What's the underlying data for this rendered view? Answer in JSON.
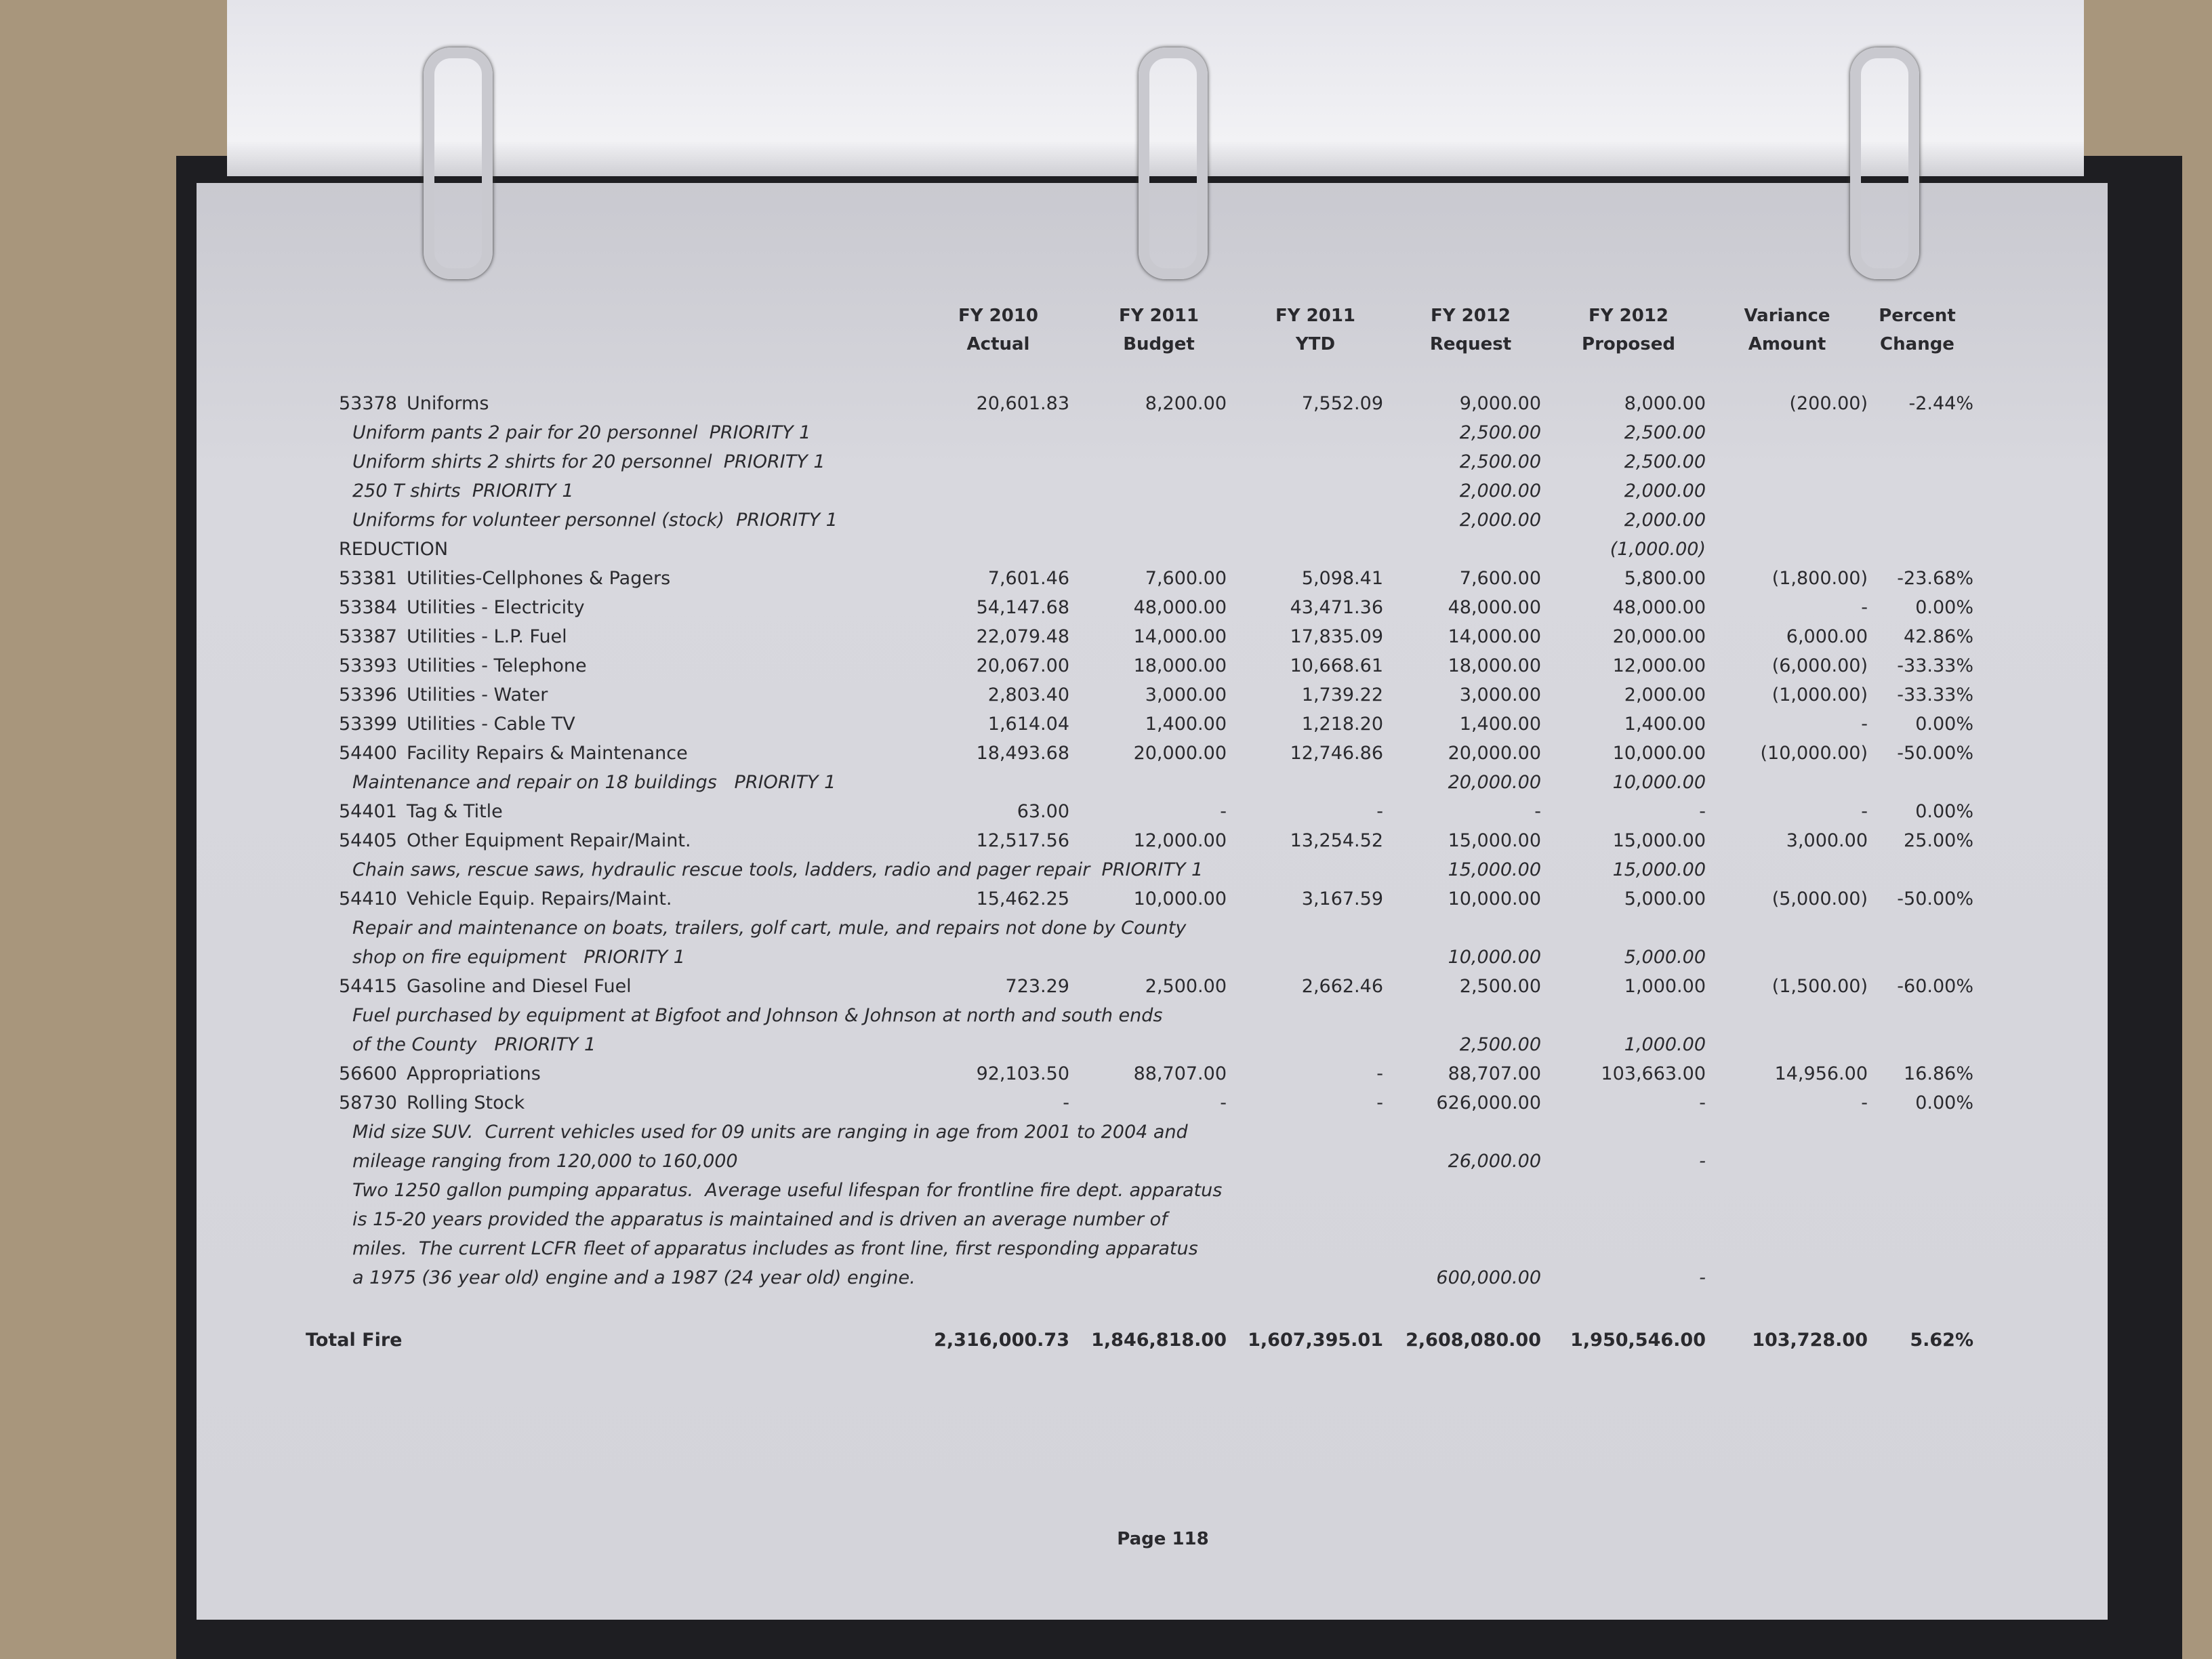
{
  "header": {
    "columns": [
      {
        "key": "actual2010",
        "line1": "FY 2010",
        "line2": "Actual"
      },
      {
        "key": "budget2011",
        "line1": "FY 2011",
        "line2": "Budget"
      },
      {
        "key": "ytd2011",
        "line1": "FY 2011",
        "line2": "YTD"
      },
      {
        "key": "request2012",
        "line1": "FY 2012",
        "line2": "Request"
      },
      {
        "key": "proposed2012",
        "line1": "FY 2012",
        "line2": "Proposed"
      },
      {
        "key": "variance",
        "line1": "Variance",
        "line2": "Amount"
      },
      {
        "key": "percent",
        "line1": "Percent",
        "line2": "Change"
      }
    ]
  },
  "rows": [
    {
      "account": "53378",
      "name": "Uniforms",
      "values": {
        "actual2010": "20,601.83",
        "budget2011": "8,200.00",
        "ytd2011": "7,552.09",
        "request2012": "9,000.00",
        "proposed2012": "8,000.00",
        "variance": "(200.00)",
        "percent": "-2.44%"
      }
    },
    {
      "note": "Uniform pants 2 pair for 20 personnel  PRIORITY 1",
      "values": {
        "request2012": "2,500.00",
        "proposed2012": "2,500.00"
      }
    },
    {
      "note": "Uniform shirts 2 shirts for 20 personnel  PRIORITY 1",
      "values": {
        "request2012": "2,500.00",
        "proposed2012": "2,500.00"
      }
    },
    {
      "note": "250 T shirts  PRIORITY 1",
      "values": {
        "request2012": "2,000.00",
        "proposed2012": "2,000.00"
      }
    },
    {
      "note": "Uniforms for volunteer personnel (stock)  PRIORITY 1",
      "values": {
        "request2012": "2,000.00",
        "proposed2012": "2,000.00"
      }
    },
    {
      "name": "REDUCTION",
      "values": {
        "proposed2012": "(1,000.00)"
      }
    },
    {
      "account": "53381",
      "name": "Utilities-Cellphones & Pagers",
      "values": {
        "actual2010": "7,601.46",
        "budget2011": "7,600.00",
        "ytd2011": "5,098.41",
        "request2012": "7,600.00",
        "proposed2012": "5,800.00",
        "variance": "(1,800.00)",
        "percent": "-23.68%"
      }
    },
    {
      "account": "53384",
      "name": "Utilities - Electricity",
      "values": {
        "actual2010": "54,147.68",
        "budget2011": "48,000.00",
        "ytd2011": "43,471.36",
        "request2012": "48,000.00",
        "proposed2012": "48,000.00",
        "variance": "-",
        "percent": "0.00%"
      }
    },
    {
      "account": "53387",
      "name": "Utilities - L.P. Fuel",
      "values": {
        "actual2010": "22,079.48",
        "budget2011": "14,000.00",
        "ytd2011": "17,835.09",
        "request2012": "14,000.00",
        "proposed2012": "20,000.00",
        "variance": "6,000.00",
        "percent": "42.86%"
      }
    },
    {
      "account": "53393",
      "name": "Utilities - Telephone",
      "values": {
        "actual2010": "20,067.00",
        "budget2011": "18,000.00",
        "ytd2011": "10,668.61",
        "request2012": "18,000.00",
        "proposed2012": "12,000.00",
        "variance": "(6,000.00)",
        "percent": "-33.33%"
      }
    },
    {
      "account": "53396",
      "name": "Utilities - Water",
      "values": {
        "actual2010": "2,803.40",
        "budget2011": "3,000.00",
        "ytd2011": "1,739.22",
        "request2012": "3,000.00",
        "proposed2012": "2,000.00",
        "variance": "(1,000.00)",
        "percent": "-33.33%"
      }
    },
    {
      "account": "53399",
      "name": "Utilities - Cable TV",
      "values": {
        "actual2010": "1,614.04",
        "budget2011": "1,400.00",
        "ytd2011": "1,218.20",
        "request2012": "1,400.00",
        "proposed2012": "1,400.00",
        "variance": "-",
        "percent": "0.00%"
      }
    },
    {
      "account": "54400",
      "name": "Facility Repairs & Maintenance",
      "values": {
        "actual2010": "18,493.68",
        "budget2011": "20,000.00",
        "ytd2011": "12,746.86",
        "request2012": "20,000.00",
        "proposed2012": "10,000.00",
        "variance": "(10,000.00)",
        "percent": "-50.00%"
      }
    },
    {
      "note": "Maintenance and repair on 18 buildings   PRIORITY 1",
      "values": {
        "request2012": "20,000.00",
        "proposed2012": "10,000.00"
      }
    },
    {
      "account": "54401",
      "name": "Tag & Title",
      "values": {
        "actual2010": "63.00",
        "budget2011": "-",
        "ytd2011": "-",
        "request2012": "-",
        "proposed2012": "-",
        "variance": "-",
        "percent": "0.00%"
      }
    },
    {
      "account": "54405",
      "name": "Other Equipment Repair/Maint.",
      "values": {
        "actual2010": "12,517.56",
        "budget2011": "12,000.00",
        "ytd2011": "13,254.52",
        "request2012": "15,000.00",
        "proposed2012": "15,000.00",
        "variance": "3,000.00",
        "percent": "25.00%"
      }
    },
    {
      "note": "Chain saws, rescue saws, hydraulic rescue tools, ladders, radio and pager repair  PRIORITY 1",
      "values": {
        "request2012": "15,000.00",
        "proposed2012": "15,000.00"
      }
    },
    {
      "account": "54410",
      "name": "Vehicle Equip. Repairs/Maint.",
      "values": {
        "actual2010": "15,462.25",
        "budget2011": "10,000.00",
        "ytd2011": "3,167.59",
        "request2012": "10,000.00",
        "proposed2012": "5,000.00",
        "variance": "(5,000.00)",
        "percent": "-50.00%"
      }
    },
    {
      "note": "Repair and maintenance on boats, trailers, golf cart, mule, and repairs not done by County",
      "values": {}
    },
    {
      "note": "shop on fire equipment   PRIORITY 1",
      "values": {
        "request2012": "10,000.00",
        "proposed2012": "5,000.00"
      }
    },
    {
      "account": "54415",
      "name": "Gasoline and Diesel Fuel",
      "values": {
        "actual2010": "723.29",
        "budget2011": "2,500.00",
        "ytd2011": "2,662.46",
        "request2012": "2,500.00",
        "proposed2012": "1,000.00",
        "variance": "(1,500.00)",
        "percent": "-60.00%"
      }
    },
    {
      "note": "Fuel purchased by equipment at Bigfoot and Johnson & Johnson at north and south ends",
      "values": {}
    },
    {
      "note": "of the County   PRIORITY 1",
      "values": {
        "request2012": "2,500.00",
        "proposed2012": "1,000.00"
      }
    },
    {
      "account": "56600",
      "name": "Appropriations",
      "values": {
        "actual2010": "92,103.50",
        "budget2011": "88,707.00",
        "ytd2011": "-",
        "request2012": "88,707.00",
        "proposed2012": "103,663.00",
        "variance": "14,956.00",
        "percent": "16.86%"
      }
    },
    {
      "account": "58730",
      "name": "Rolling Stock",
      "values": {
        "actual2010": "-",
        "budget2011": "-",
        "ytd2011": "-",
        "request2012": "626,000.00",
        "proposed2012": "-",
        "variance": "-",
        "percent": "0.00%"
      }
    },
    {
      "note": "Mid size SUV.  Current vehicles used for 09 units are ranging in age from 2001 to 2004 and",
      "values": {}
    },
    {
      "note": "mileage ranging from 120,000 to 160,000",
      "values": {
        "request2012": "26,000.00",
        "proposed2012": "-"
      }
    },
    {
      "note": "Two 1250 gallon pumping apparatus.  Average useful lifespan for frontline fire dept. apparatus",
      "values": {}
    },
    {
      "note": "is 15-20 years provided the apparatus is maintained and is driven an average number of",
      "values": {}
    },
    {
      "note": "miles.  The current LCFR fleet of apparatus includes as front line, first responding apparatus",
      "values": {}
    },
    {
      "note": "a 1975 (36 year old) engine and a 1987 (24 year old) engine.",
      "values": {
        "request2012": "600,000.00",
        "proposed2012": "-"
      }
    }
  ],
  "total": {
    "name": "Total Fire",
    "values": {
      "actual2010": "2,316,000.73",
      "budget2011": "1,846,818.00",
      "ytd2011": "1,607,395.01",
      "request2012": "2,608,080.00",
      "proposed2012": "1,950,546.00",
      "variance": "103,728.00",
      "percent": "5.62%"
    }
  },
  "footer": {
    "page": "Page 118"
  }
}
